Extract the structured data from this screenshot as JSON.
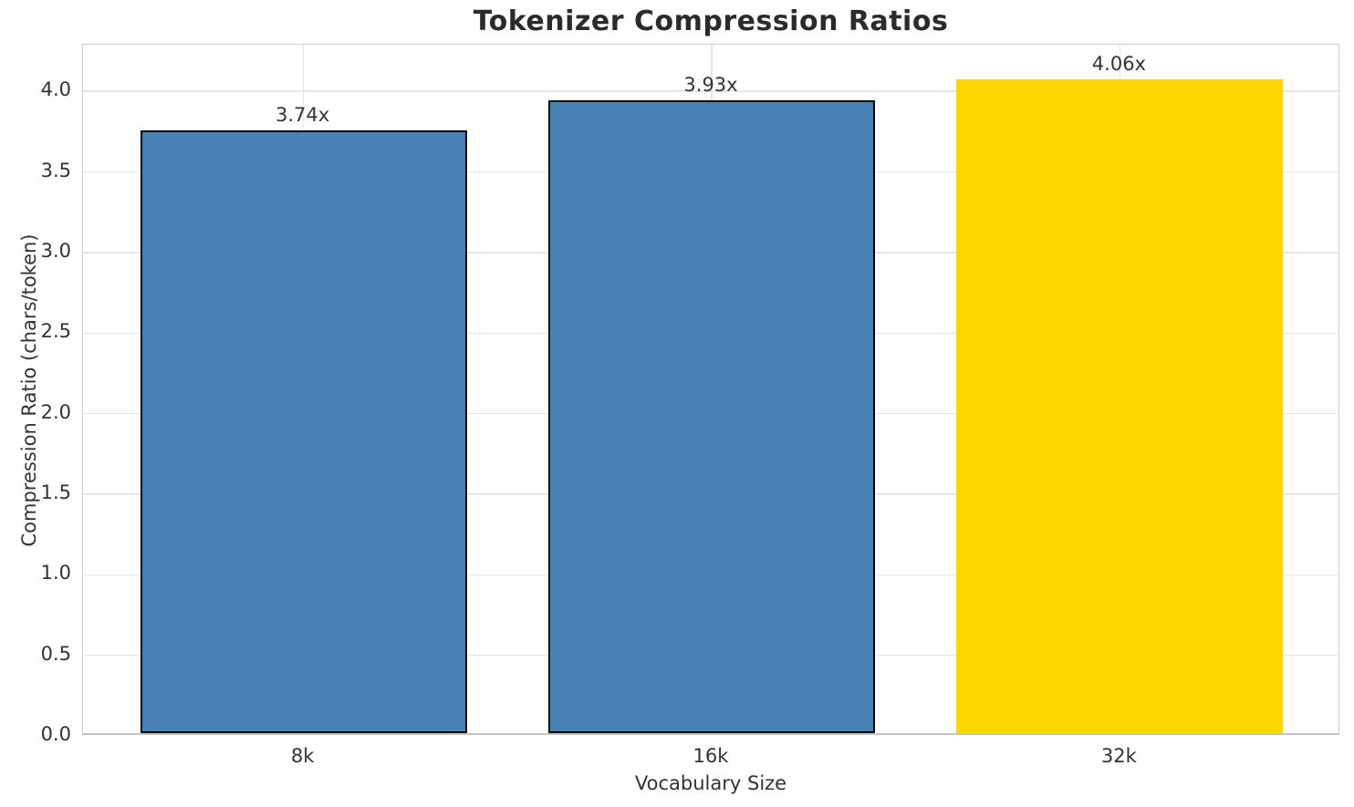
{
  "chart_data": {
    "type": "bar",
    "title": "Tokenizer Compression Ratios",
    "xlabel": "Vocabulary Size",
    "ylabel": "Compression Ratio (chars/token)",
    "categories": [
      "8k",
      "16k",
      "32k"
    ],
    "values": [
      3.74,
      3.93,
      4.06
    ],
    "value_labels": [
      "3.74x",
      "3.93x",
      "4.06x"
    ],
    "bar_colors": [
      "#4682b4",
      "#4682b4",
      "#ffd700"
    ],
    "bar_edge_colors": [
      "#000000",
      "#000000",
      "none"
    ],
    "ytick_labels": [
      "0.0",
      "0.5",
      "1.0",
      "1.5",
      "2.0",
      "2.5",
      "3.0",
      "3.5",
      "4.0"
    ],
    "yticks": [
      0.0,
      0.5,
      1.0,
      1.5,
      2.0,
      2.5,
      3.0,
      3.5,
      4.0
    ],
    "ylim": [
      0,
      4.29
    ],
    "grid": true,
    "legend": "none",
    "colors": {
      "title_text": "#2b2b2b",
      "axis_text": "#333333",
      "gridline": "#e7e7e7",
      "spine": "#cdcdcd",
      "background": "#ffffff",
      "highlight_bar": "#ffd700",
      "default_bar": "#4682b4"
    }
  }
}
